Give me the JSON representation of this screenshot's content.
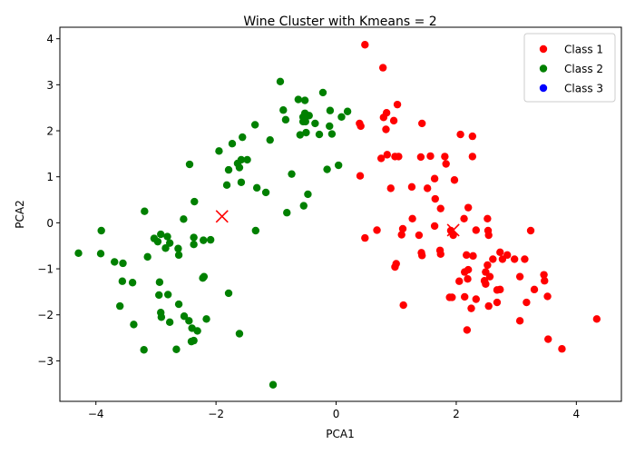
{
  "chart_data": {
    "type": "scatter",
    "title": "Wine Cluster with Kmeans = 2",
    "xlabel": "PCA1",
    "ylabel": "PCA2",
    "xlim": [
      -4.6,
      4.75
    ],
    "ylim": [
      -3.88,
      4.25
    ],
    "xticks": [
      -4,
      -2,
      0,
      2,
      4
    ],
    "yticks": [
      -3,
      -2,
      -1,
      0,
      1,
      2,
      3,
      4
    ],
    "grid": false,
    "legend_position": "top-right",
    "series": [
      {
        "name": "Class 1",
        "color": "#ff0000",
        "points": [
          [
            0.48,
            3.87
          ],
          [
            0.78,
            3.37
          ],
          [
            1.02,
            2.57
          ],
          [
            0.84,
            2.39
          ],
          [
            0.79,
            2.29
          ],
          [
            0.96,
            2.22
          ],
          [
            1.43,
            2.16
          ],
          [
            0.39,
            2.16
          ],
          [
            0.41,
            2.1
          ],
          [
            0.83,
            2.03
          ],
          [
            2.07,
            1.92
          ],
          [
            2.27,
            1.88
          ],
          [
            1.57,
            1.45
          ],
          [
            1.81,
            1.44
          ],
          [
            2.27,
            1.44
          ],
          [
            1.41,
            1.43
          ],
          [
            1.04,
            1.44
          ],
          [
            0.98,
            1.44
          ],
          [
            0.85,
            1.48
          ],
          [
            0.75,
            1.4
          ],
          [
            1.83,
            1.28
          ],
          [
            0.4,
            1.02
          ],
          [
            1.64,
            0.96
          ],
          [
            1.97,
            0.93
          ],
          [
            1.52,
            0.75
          ],
          [
            1.26,
            0.78
          ],
          [
            0.91,
            0.75
          ],
          [
            1.65,
            0.52
          ],
          [
            2.2,
            0.33
          ],
          [
            1.74,
            0.31
          ],
          [
            2.52,
            0.09
          ],
          [
            2.13,
            0.09
          ],
          [
            1.27,
            0.09
          ],
          [
            1.64,
            -0.07
          ],
          [
            1.11,
            -0.13
          ],
          [
            1.91,
            -0.17
          ],
          [
            2.33,
            -0.16
          ],
          [
            2.53,
            -0.17
          ],
          [
            3.24,
            -0.17
          ],
          [
            0.68,
            -0.16
          ],
          [
            1.09,
            -0.26
          ],
          [
            1.38,
            -0.27
          ],
          [
            1.95,
            -0.27
          ],
          [
            2.54,
            -0.27
          ],
          [
            0.48,
            -0.33
          ],
          [
            1.73,
            -0.6
          ],
          [
            1.42,
            -0.65
          ],
          [
            2.73,
            -0.64
          ],
          [
            1.74,
            -0.68
          ],
          [
            2.17,
            -0.7
          ],
          [
            2.85,
            -0.7
          ],
          [
            1.43,
            -0.71
          ],
          [
            2.28,
            -0.72
          ],
          [
            2.61,
            -0.79
          ],
          [
            2.77,
            -0.79
          ],
          [
            2.97,
            -0.79
          ],
          [
            3.14,
            -0.79
          ],
          [
            1.0,
            -0.89
          ],
          [
            0.98,
            -0.96
          ],
          [
            2.52,
            -0.92
          ],
          [
            2.2,
            -1.02
          ],
          [
            2.49,
            -1.07
          ],
          [
            2.14,
            -1.07
          ],
          [
            3.06,
            -1.17
          ],
          [
            3.46,
            -1.13
          ],
          [
            2.05,
            -1.27
          ],
          [
            2.56,
            -1.17
          ],
          [
            2.19,
            -1.22
          ],
          [
            2.47,
            -1.26
          ],
          [
            3.47,
            -1.26
          ],
          [
            2.49,
            -1.33
          ],
          [
            2.73,
            -1.45
          ],
          [
            3.3,
            -1.45
          ],
          [
            2.68,
            -1.46
          ],
          [
            2.14,
            -1.61
          ],
          [
            1.89,
            -1.62
          ],
          [
            1.93,
            -1.62
          ],
          [
            3.52,
            -1.6
          ],
          [
            2.33,
            -1.66
          ],
          [
            2.68,
            -1.73
          ],
          [
            3.17,
            -1.73
          ],
          [
            2.54,
            -1.81
          ],
          [
            2.25,
            -1.86
          ],
          [
            3.06,
            -2.13
          ],
          [
            1.12,
            -1.79
          ],
          [
            2.18,
            -2.33
          ],
          [
            3.53,
            -2.53
          ],
          [
            3.76,
            -2.74
          ],
          [
            4.34,
            -2.09
          ]
        ]
      },
      {
        "name": "Class 2",
        "color": "#008000",
        "points": [
          [
            -0.93,
            3.07
          ],
          [
            -0.22,
            2.83
          ],
          [
            -0.63,
            2.68
          ],
          [
            -0.52,
            2.66
          ],
          [
            -0.88,
            2.45
          ],
          [
            -0.52,
            2.38
          ],
          [
            -0.45,
            2.33
          ],
          [
            -0.55,
            2.3
          ],
          [
            -0.1,
            2.44
          ],
          [
            -0.51,
            2.2
          ],
          [
            -0.35,
            2.16
          ],
          [
            -0.84,
            2.24
          ],
          [
            -0.55,
            2.2
          ],
          [
            -0.11,
            2.1
          ],
          [
            0.09,
            2.3
          ],
          [
            0.19,
            2.42
          ],
          [
            -1.35,
            2.13
          ],
          [
            -0.6,
            1.91
          ],
          [
            -0.5,
            1.96
          ],
          [
            -0.28,
            1.92
          ],
          [
            -0.07,
            1.93
          ],
          [
            -1.56,
            1.86
          ],
          [
            -1.1,
            1.8
          ],
          [
            -1.73,
            1.72
          ],
          [
            -1.95,
            1.56
          ],
          [
            -1.48,
            1.37
          ],
          [
            -1.58,
            1.37
          ],
          [
            -1.64,
            1.29
          ],
          [
            -1.61,
            1.2
          ],
          [
            -2.44,
            1.27
          ],
          [
            -1.79,
            1.15
          ],
          [
            -0.74,
            1.06
          ],
          [
            -0.15,
            1.16
          ],
          [
            0.04,
            1.25
          ],
          [
            -1.58,
            0.88
          ],
          [
            -1.82,
            0.82
          ],
          [
            -1.32,
            0.76
          ],
          [
            -1.17,
            0.66
          ],
          [
            -0.47,
            0.62
          ],
          [
            -2.36,
            0.46
          ],
          [
            -0.54,
            0.37
          ],
          [
            -0.82,
            0.22
          ],
          [
            -3.19,
            0.25
          ],
          [
            -2.54,
            0.08
          ],
          [
            -1.34,
            -0.17
          ],
          [
            -3.91,
            -0.17
          ],
          [
            -2.92,
            -0.25
          ],
          [
            -3.03,
            -0.34
          ],
          [
            -2.81,
            -0.3
          ],
          [
            -2.09,
            -0.37
          ],
          [
            -2.37,
            -0.32
          ],
          [
            -2.21,
            -0.38
          ],
          [
            -2.97,
            -0.41
          ],
          [
            -2.77,
            -0.44
          ],
          [
            -2.37,
            -0.47
          ],
          [
            -2.84,
            -0.55
          ],
          [
            -2.63,
            -0.56
          ],
          [
            -2.62,
            -0.7
          ],
          [
            -3.14,
            -0.74
          ],
          [
            -3.92,
            -0.67
          ],
          [
            -4.29,
            -0.66
          ],
          [
            -3.69,
            -0.85
          ],
          [
            -3.55,
            -0.88
          ],
          [
            -2.2,
            -1.17
          ],
          [
            -2.22,
            -1.2
          ],
          [
            -3.56,
            -1.27
          ],
          [
            -3.39,
            -1.3
          ],
          [
            -2.94,
            -1.29
          ],
          [
            -1.79,
            -1.53
          ],
          [
            -2.8,
            -1.56
          ],
          [
            -2.95,
            -1.57
          ],
          [
            -3.6,
            -1.81
          ],
          [
            -2.62,
            -1.77
          ],
          [
            -2.92,
            -1.95
          ],
          [
            -2.91,
            -2.05
          ],
          [
            -2.53,
            -2.03
          ],
          [
            -2.45,
            -2.13
          ],
          [
            -2.77,
            -2.16
          ],
          [
            -3.37,
            -2.21
          ],
          [
            -2.16,
            -2.09
          ],
          [
            -2.4,
            -2.29
          ],
          [
            -2.31,
            -2.35
          ],
          [
            -2.37,
            -2.56
          ],
          [
            -2.41,
            -2.58
          ],
          [
            -1.61,
            -2.41
          ],
          [
            -3.2,
            -2.76
          ],
          [
            -2.66,
            -2.75
          ],
          [
            -1.05,
            -3.52
          ]
        ]
      },
      {
        "name": "Class 3",
        "color": "#0000ff",
        "points": []
      }
    ],
    "centroids": {
      "color": "#ff0000",
      "marker": "x",
      "points": [
        [
          -1.9,
          0.14
        ],
        [
          1.95,
          -0.16
        ]
      ]
    }
  }
}
